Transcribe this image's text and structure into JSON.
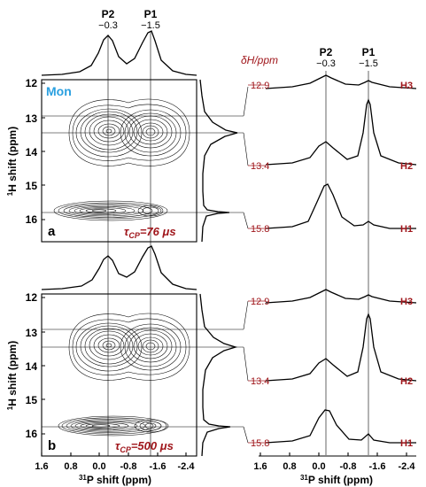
{
  "top_peaks": [
    {
      "name": "P2",
      "shift": "−0.3"
    },
    {
      "name": "P1",
      "shift": "−1.5"
    }
  ],
  "right_header": "δH/ppm",
  "sample_label": "Mon",
  "panels": [
    {
      "letter": "a",
      "tau_label": "τCP=76 μs",
      "tau_symbol": "τ",
      "tau_sub": "CP",
      "tau_value": "=76 μs"
    },
    {
      "letter": "b",
      "tau_label": "τCP=500 μs",
      "tau_symbol": "τ",
      "tau_sub": "CP",
      "tau_value": "=500 μs"
    }
  ],
  "y_axis": {
    "label_sup": "1",
    "label_text": "H shift (ppm)",
    "ticks": [
      "12",
      "13",
      "14",
      "15",
      "16"
    ]
  },
  "x_axis": {
    "label_sup": "31",
    "label_text": "P shift (ppm)",
    "ticks": [
      "1.6",
      "0.8",
      "0.0",
      "-0.8",
      "-1.6",
      "-2.4"
    ]
  },
  "slices": [
    {
      "shift": "12.9",
      "name": "H3"
    },
    {
      "shift": "13.4",
      "name": "H2"
    },
    {
      "shift": "15.8",
      "name": "H1"
    }
  ],
  "colors": {
    "accent_red": "#a0171c",
    "label_blue": "#2aa0e0"
  }
}
